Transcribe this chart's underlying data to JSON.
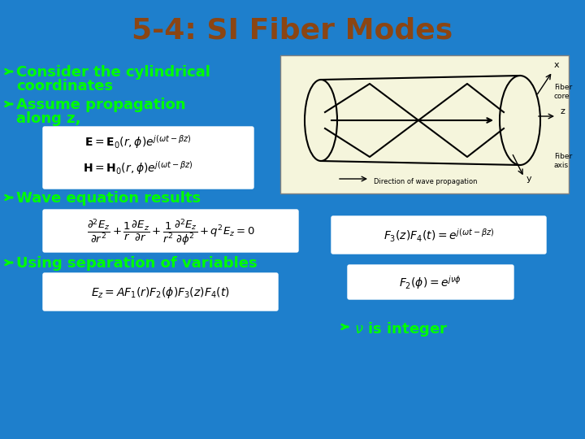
{
  "title": "5-4: SI Fiber Modes",
  "title_color": "#8B4513",
  "background_color": "#1E7FCC",
  "bullet_color": "#00FF00",
  "bullet_points": [
    "Consider the cylindrical\ncoordinates",
    "Assume propagation\nalong z,",
    "Wave equation results",
    "Using separation of variables"
  ],
  "formula_box_color": "#FFFFFF",
  "formula_text_color": "#000000",
  "nu_bullet": "ν is integer",
  "figsize": [
    7.2,
    5.4
  ],
  "dpi": 100
}
